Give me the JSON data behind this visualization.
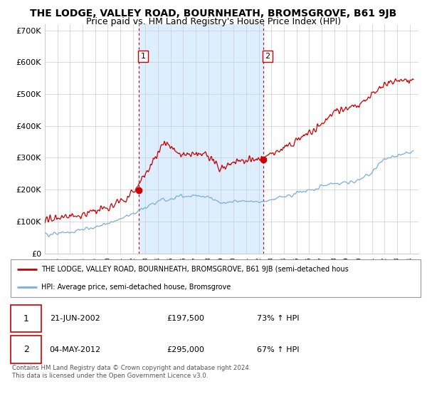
{
  "title": "THE LODGE, VALLEY ROAD, BOURNHEATH, BROMSGROVE, B61 9JB",
  "subtitle": "Price paid vs. HM Land Registry's House Price Index (HPI)",
  "title_fontsize": 10,
  "subtitle_fontsize": 9,
  "ylabel_ticks": [
    "£0",
    "£100K",
    "£200K",
    "£300K",
    "£400K",
    "£500K",
    "£600K",
    "£700K"
  ],
  "ytick_values": [
    0,
    100000,
    200000,
    300000,
    400000,
    500000,
    600000,
    700000
  ],
  "ylim": [
    0,
    720000
  ],
  "xlim_start": 1995.0,
  "xlim_end": 2024.7,
  "xtick_years": [
    1995,
    1996,
    1997,
    1998,
    1999,
    2000,
    2001,
    2002,
    2003,
    2004,
    2005,
    2006,
    2007,
    2008,
    2009,
    2010,
    2011,
    2012,
    2013,
    2014,
    2015,
    2016,
    2017,
    2018,
    2019,
    2020,
    2021,
    2022,
    2023,
    2024
  ],
  "hpi_color": "#7aaddc",
  "price_color": "#cc0000",
  "grid_color": "#cccccc",
  "background_color": "#ffffff",
  "shaded_region_color": "#ddeeff",
  "shaded_x1": 2002.47,
  "shaded_x2": 2012.34,
  "sale1_x": 2002.47,
  "sale1_y": 197500,
  "sale2_x": 2012.34,
  "sale2_y": 295000,
  "legend_price_label": "THE LODGE, VALLEY ROAD, BOURNHEATH, BROMSGROVE, B61 9JB (semi-detached hous",
  "legend_hpi_label": "HPI: Average price, semi-detached house, Bromsgrove",
  "table_data": [
    {
      "num": "1",
      "date": "21-JUN-2002",
      "price": "£197,500",
      "change": "73% ↑ HPI"
    },
    {
      "num": "2",
      "date": "04-MAY-2012",
      "price": "£295,000",
      "change": "67% ↑ HPI"
    }
  ],
  "footer": "Contains HM Land Registry data © Crown copyright and database right 2024.\nThis data is licensed under the Open Government Licence v3.0."
}
